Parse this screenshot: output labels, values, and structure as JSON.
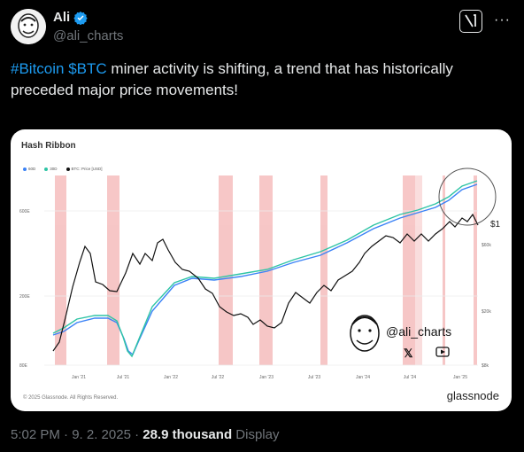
{
  "author": {
    "name": "Ali",
    "handle": "@ali_charts"
  },
  "tweet": {
    "hashtag": "#Bitcoin",
    "cashtag": "$BTC",
    "text": " miner activity is shifting, a trend that has historically preceded major price movements!"
  },
  "chart": {
    "title": "Hash Ribbon",
    "legend": {
      "s1": "60D",
      "s2": "30D",
      "s3": "BTC: Price [USD]"
    },
    "left_axis": [
      "600E",
      "200E",
      "80E"
    ],
    "right_axis": [
      "$60k",
      "$20k",
      "$8k"
    ],
    "x_ticks": [
      "Jan '21",
      "Jul '21",
      "Jan '22",
      "Jul '22",
      "Jan '23",
      "Jul '23",
      "Jan '24",
      "Jul '24",
      "Jan '25"
    ],
    "watermark": "@ali_charts",
    "footer_left": "© 2025 Glassnode. All Rights Reserved.",
    "brand": "glassnode",
    "price_cut": "$1",
    "colors": {
      "s1": "#3b82f6",
      "s2": "#2ec4a5",
      "price": "#111111",
      "band": "#f4b4b4"
    }
  },
  "meta": {
    "time": "5:02 PM · 9. 2. 2025 · ",
    "views": "28.9 thousand",
    "views_label": " Display"
  },
  "icons": {
    "verified": "verified-badge-icon",
    "grok": "grok-icon",
    "more": "more-icon"
  }
}
